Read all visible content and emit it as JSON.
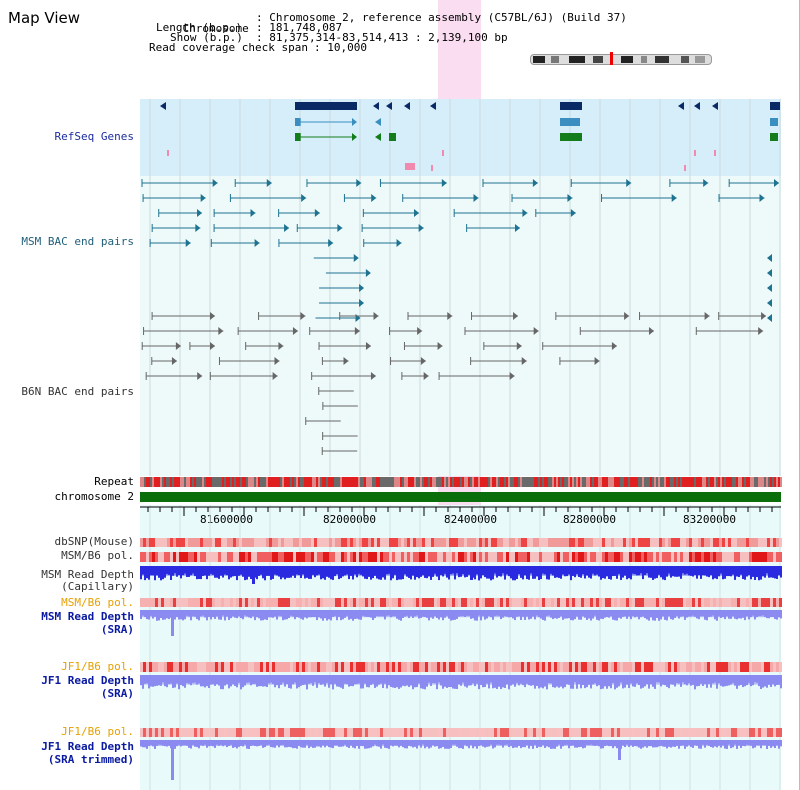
{
  "app_title": "Map View",
  "info": {
    "chromosome_key": "Chromosome",
    "chromosome_val": ": Chromosome 2, reference assembly (C57BL/6J) (Build 37)",
    "length_key": "Length (b.p.)",
    "length_val": ": 181,748,087",
    "show_key": "Show (b.p.)",
    "show_val": ": 81,375,314-83,514,413 : 2,139,100 bp",
    "coverage_key": "Read coverage check span",
    "coverage_val": ": 10,000"
  },
  "tracks": {
    "refseq": "RefSeq Genes",
    "msm_bac": "MSM BAC end pairs",
    "b6n_bac": "B6N BAC end pairs",
    "repeat": "Repeat",
    "chromosome": "chromosome 2",
    "dbsnp": "dbSNP(Mouse)",
    "msm_b6_pol": "MSM/B6 pol.",
    "msm_read_depth_cap_1": "MSM Read Depth",
    "msm_read_depth_cap_2": "(Capillary)",
    "msm_b6_pol_2": "MSM/B6 pol.",
    "msm_read_depth_sra_1": "MSM Read Depth",
    "msm_read_depth_sra_2": "(SRA)",
    "jf1_b6_pol": "JF1/B6 pol.",
    "jf1_read_depth_sra_1": "JF1 Read Depth",
    "jf1_read_depth_sra_2": "(SRA)",
    "jf1_b6_pol_2": "JF1/B6 pol.",
    "jf1_read_depth_trim_1": "JF1 Read Depth",
    "jf1_read_depth_trim_2": "(SRA trimmed)"
  },
  "ruler": {
    "ticks": [
      "81600000",
      "82000000",
      "82400000",
      "82800000",
      "83200000"
    ]
  },
  "colors": {
    "refseq_bg": "#d6eefa",
    "track_bg": "#eefafa",
    "highlight": "#f9d7ee",
    "chromosome_bar": "#0a6e0a",
    "gene_dark": "#0a2a66",
    "gene_mid": "#3b8fc0",
    "gene_green": "#127d1a",
    "msm_bac": "#1e7390",
    "b6n_bac": "#666666",
    "depth_blue": "#2a2ae0",
    "depth_light": "#8a8af0",
    "pol_red": "#e83030"
  }
}
